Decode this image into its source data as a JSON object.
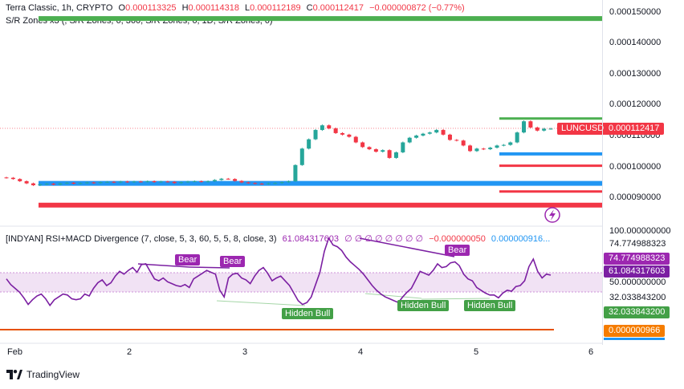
{
  "header": {
    "symbol_line_prefix": "Terra Classic, 1h, CRYPTO",
    "open_label": "O",
    "open_value": "0.000113325",
    "high_label": "H",
    "high_value": "0.000114318",
    "low_label": "L",
    "low_value": "0.000112189",
    "close_label": "C",
    "close_value": "0.000112417",
    "change": "−0.000000872 (−0.77%)",
    "indicator_line": "S/R Zones x3 (, S/R Zones, 6, 360, S/R Zones, 6, 1D, S/R Zones, 6)"
  },
  "price_axis": {
    "labels": [
      "0.000150000",
      "0.000140000",
      "0.000130000",
      "0.000120000",
      "0.000110000",
      "0.000100000",
      "0.000090000"
    ],
    "symbol_tag": "LUNCUSD",
    "current_price_tag": "0.000112417"
  },
  "rsi_pane": {
    "legend_name": "[INDYAN] RSI+MACD Divergence (7, close, 5, 3, 60, 5, 5, 8, close, 3)",
    "legend_value": "61.084317603",
    "legend_dots": "∅ ∅ ∅ ∅ ∅ ∅ ∅ ∅",
    "legend_value2": "−0.000000050",
    "legend_value3": "0.000000916...",
    "axis_labels": [
      "100.000000000",
      "74.774988323",
      "50.000000000",
      "32.033843200"
    ],
    "tag_upper": "74.774988323",
    "tag_current": "61.084317603",
    "tag_lower": "32.033843200",
    "tag_macd": "0.000000966",
    "label_bear_1": "Bear",
    "label_bear_2": "Bear",
    "label_bear_3": "Bear",
    "label_hidden_bull_1": "Hidden Bull",
    "label_hidden_bull_2": "Hidden Bull",
    "label_hidden_bull_3": "Hidden Bull"
  },
  "time_axis": {
    "labels": [
      "Feb",
      "2",
      "3",
      "4",
      "5",
      "6"
    ]
  },
  "footer": {
    "brand": "TradingView"
  },
  "colors": {
    "up": "#26a69a",
    "down": "#f23645",
    "support_zone": "#2196f3",
    "resistance_zone": "#f23645",
    "green_zone": "#4caf50",
    "rsi_line": "#7b1fa2"
  },
  "chart_data": {
    "type": "candlestick",
    "symbol": "LUNCUSD",
    "interval": "1h",
    "price_range": [
      8.3e-05,
      0.000153
    ],
    "close_series": [
      9.66e-05,
      9.62e-05,
      9.55e-05,
      9.48e-05,
      9.42e-05,
      9.45e-05,
      9.47e-05,
      9.44e-05,
      9.48e-05,
      9.5e-05,
      9.47e-05,
      9.49e-05,
      9.51e-05,
      9.49e-05,
      9.52e-05,
      9.53e-05,
      9.51e-05,
      9.54e-05,
      9.52e-05,
      9.54e-05,
      9.53e-05,
      9.55e-05,
      9.52e-05,
      9.54e-05,
      9.53e-05,
      9.49e-05,
      9.52e-05,
      9.54e-05,
      9.55e-05,
      9.53e-05,
      9.55e-05,
      9.59e-05,
      9.63e-05,
      9.62e-05,
      9.56e-05,
      9.51e-05,
      9.49e-05,
      9.47e-05,
      9.46e-05,
      9.48e-05,
      9.49e-05,
      9.52e-05,
      9.55e-05,
      0.0001007,
      0.000106,
      0.000109,
      0.000112,
      0.0001135,
      0.0001125,
      0.000111,
      0.0001105,
      0.0001098,
      0.000108,
      0.0001065,
      0.0001058,
      0.000105,
      0.0001055,
      0.000103,
      0.0001048,
      0.000108,
      0.0001095,
      0.0001102,
      0.0001108,
      0.0001112,
      0.000112,
      0.0001105,
      0.0001088,
      0.0001086,
      0.000107,
      0.0001052,
      0.000106,
      0.0001058,
      0.0001063,
      0.000107,
      0.0001072,
      0.000108,
      0.0001112,
      0.0001148,
      0.0001128,
      0.0001118,
      0.0001124,
      0.00011242
    ],
    "sr_zones": [
      {
        "level": 0.0001479,
        "color": "green"
      },
      {
        "level": 0.0001157,
        "color": "green"
      },
      {
        "level": 0.0001043,
        "color": "blue"
      },
      {
        "level": 0.0001005,
        "color": "red"
      },
      {
        "level": 9.48e-05,
        "color": "blue"
      },
      {
        "level": 9.22e-05,
        "color": "red"
      },
      {
        "level": 8.78e-05,
        "color": "red"
      }
    ],
    "rsi_series": [
      57,
      51,
      47,
      43,
      37,
      30,
      35,
      39,
      41,
      36,
      29,
      35,
      38,
      41,
      40,
      36,
      35,
      36,
      41,
      39,
      47,
      53,
      56,
      50,
      53,
      60,
      65,
      62,
      66,
      69,
      64,
      72,
      73,
      65,
      57,
      55,
      58,
      54,
      52,
      50,
      49,
      51,
      48,
      57,
      60,
      63,
      66,
      64,
      62,
      45,
      38,
      58,
      62,
      63,
      58,
      56,
      52,
      60,
      66,
      69,
      63,
      55,
      58,
      60,
      55,
      50,
      42,
      34,
      30,
      32,
      38,
      51,
      64,
      86,
      100,
      93,
      91,
      87,
      80,
      75,
      71,
      67,
      62,
      56,
      50,
      45,
      41,
      38,
      36,
      34,
      32,
      38,
      43,
      47,
      56,
      65,
      63,
      61,
      66,
      73,
      69,
      70,
      74,
      75,
      71,
      62,
      57,
      55,
      48,
      45,
      42,
      40,
      40,
      37,
      42,
      45,
      44,
      49,
      50,
      55,
      70,
      78,
      65,
      58,
      62,
      61
    ],
    "rsi_range": [
      0,
      100
    ],
    "macd_value": 9.66e-07
  }
}
